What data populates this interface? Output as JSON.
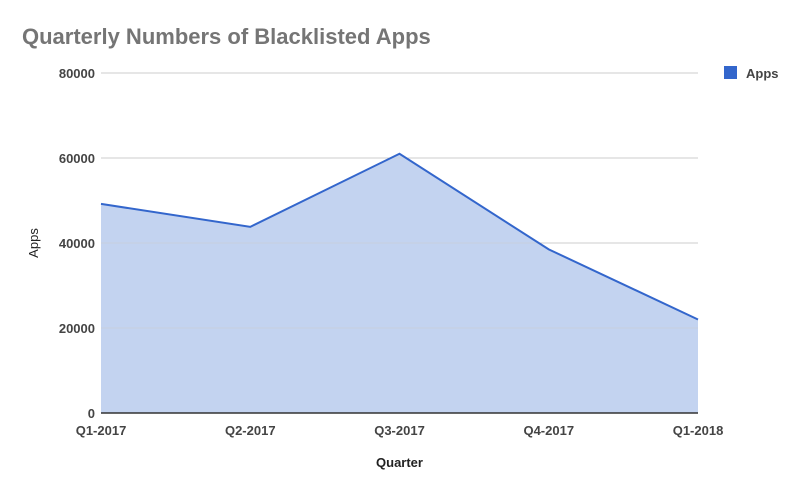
{
  "chart_data": {
    "type": "area",
    "title": "Quarterly Numbers of Blacklisted Apps",
    "xlabel": "Quarter",
    "ylabel": "Apps",
    "categories": [
      "Q1-2017",
      "Q2-2017",
      "Q3-2017",
      "Q4-2017",
      "Q1-2018"
    ],
    "series": [
      {
        "name": "Apps",
        "values": [
          49200,
          43800,
          61000,
          38500,
          22000
        ]
      }
    ],
    "ylim": [
      0,
      80000
    ],
    "yticks": [
      "0",
      "20000",
      "40000",
      "60000",
      "80000"
    ],
    "grid": true,
    "legend_position": "top-right",
    "colors": {
      "line": "#3366cc",
      "fill": "#c3d3f0",
      "legend_swatch": "#3366cc",
      "grid": "#cccccc",
      "baseline": "#333333",
      "text": "#444444",
      "title": "#757575"
    }
  }
}
